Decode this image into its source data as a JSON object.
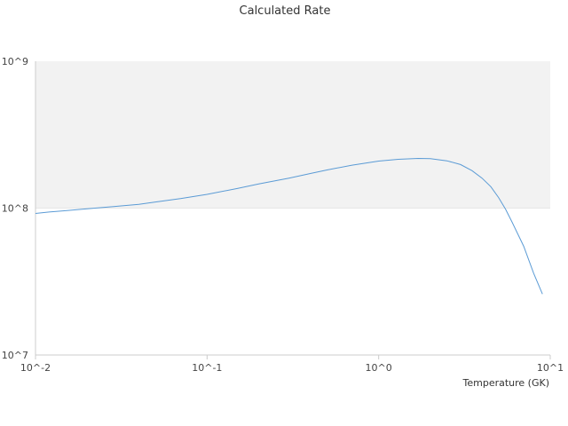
{
  "chart_data": {
    "type": "line",
    "title": "Calculated Rate",
    "xlabel": "Temperature (GK)",
    "ylabel": "",
    "x_scale": "log",
    "y_scale": "log",
    "xlim": [
      0.01,
      10
    ],
    "ylim": [
      10000000,
      1000000000
    ],
    "x_ticks": [
      {
        "value": 0.01,
        "label": "10^-2"
      },
      {
        "value": 0.1,
        "label": "10^-1"
      },
      {
        "value": 1,
        "label": "10^0"
      },
      {
        "value": 10,
        "label": "10^1"
      }
    ],
    "y_ticks": [
      {
        "value": 10000000,
        "label": "10^7"
      },
      {
        "value": 100000000,
        "label": "10^8"
      },
      {
        "value": 1000000000,
        "label": "10^9"
      }
    ],
    "colors": {
      "line": "#5b9bd5",
      "band": "#f2f2f2",
      "axis": "#cccccc"
    },
    "series": [
      {
        "values": [
          {
            "x": 0.01,
            "y": 92000000
          },
          {
            "x": 0.012,
            "y": 94000000
          },
          {
            "x": 0.015,
            "y": 96000000
          },
          {
            "x": 0.02,
            "y": 99000000
          },
          {
            "x": 0.03,
            "y": 103000000
          },
          {
            "x": 0.04,
            "y": 106000000
          },
          {
            "x": 0.05,
            "y": 110000000
          },
          {
            "x": 0.07,
            "y": 116000000
          },
          {
            "x": 0.1,
            "y": 124000000
          },
          {
            "x": 0.15,
            "y": 136000000
          },
          {
            "x": 0.2,
            "y": 146000000
          },
          {
            "x": 0.3,
            "y": 160000000
          },
          {
            "x": 0.4,
            "y": 172000000
          },
          {
            "x": 0.5,
            "y": 182000000
          },
          {
            "x": 0.7,
            "y": 196000000
          },
          {
            "x": 1.0,
            "y": 209000000
          },
          {
            "x": 1.3,
            "y": 215000000
          },
          {
            "x": 1.7,
            "y": 218000000
          },
          {
            "x": 2.0,
            "y": 217000000
          },
          {
            "x": 2.5,
            "y": 210000000
          },
          {
            "x": 3.0,
            "y": 198000000
          },
          {
            "x": 3.5,
            "y": 180000000
          },
          {
            "x": 4.0,
            "y": 160000000
          },
          {
            "x": 4.5,
            "y": 140000000
          },
          {
            "x": 5.0,
            "y": 118000000
          },
          {
            "x": 5.5,
            "y": 98000000
          },
          {
            "x": 6.0,
            "y": 80000000
          },
          {
            "x": 7.0,
            "y": 55000000
          },
          {
            "x": 8.0,
            "y": 36000000
          },
          {
            "x": 9.0,
            "y": 26000000
          }
        ]
      }
    ]
  }
}
